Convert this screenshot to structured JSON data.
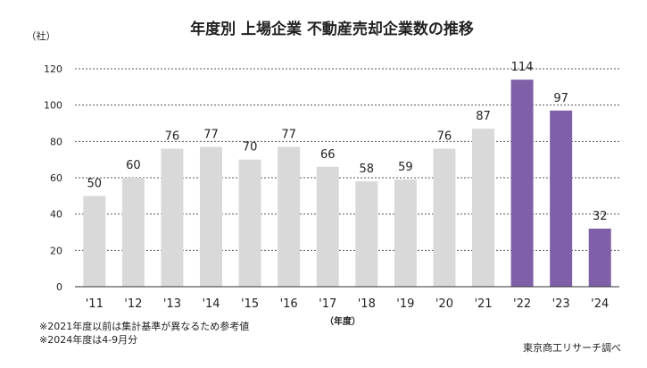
{
  "chart_data": {
    "type": "bar",
    "title": "年度別 上場企業 不動産売却企業数の推移",
    "ylabel": "（社）",
    "xlabel": "（年度）",
    "ylim": [
      0,
      120
    ],
    "yticks": [
      0,
      20,
      40,
      60,
      80,
      100,
      120
    ],
    "grid": true,
    "categories": [
      "'11",
      "'12",
      "'13",
      "'14",
      "'15",
      "'16",
      "'17",
      "'18",
      "'19",
      "'20",
      "'21",
      "'22",
      "'23",
      "'24"
    ],
    "values": [
      50,
      60,
      76,
      77,
      70,
      77,
      66,
      58,
      59,
      76,
      87,
      114,
      97,
      32
    ],
    "colors": {
      "default": "#d9d9d9",
      "highlight": "#7f5fa8",
      "grid": "#555555",
      "axis": "#333333"
    },
    "highlight_categories": [
      "'22",
      "'23",
      "'24"
    ]
  },
  "notes": [
    "※2021年度以前は集計基準が異なるため参考値",
    "※2024年度は4-9月分"
  ],
  "source": "東京商工リサーチ調べ"
}
